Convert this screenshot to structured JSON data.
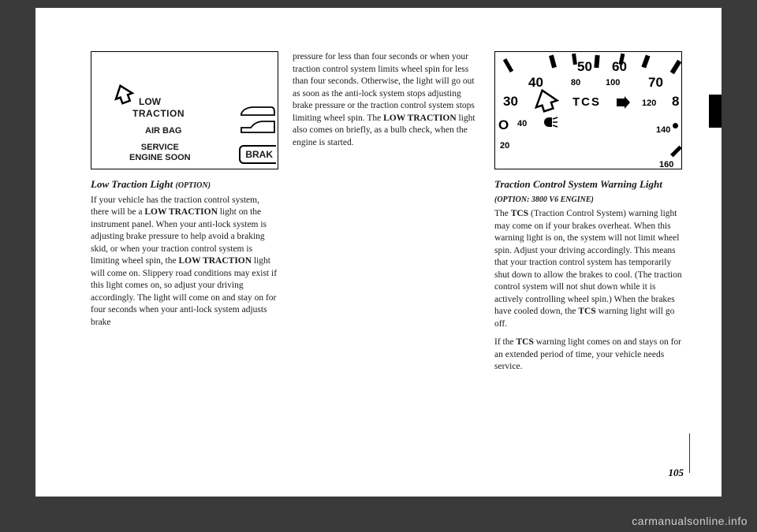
{
  "illustration1": {
    "low": "LOW",
    "traction": "TRACTION",
    "airbag": "AIR BAG",
    "service_line1": "SERVICE",
    "service_line2": "ENGINE SOON",
    "brak": "BRAK"
  },
  "column1": {
    "heading_main": "Low Traction Light",
    "heading_opt": "(OPTION)",
    "para": "If your vehicle has the traction control system, there will be a <b>LOW TRACTION</b> light on the instrument panel. When your anti-lock system is adjusting brake pressure to help avoid a braking skid, or when your traction control system is limiting wheel spin, the <b>LOW TRACTION</b> light will come on. Slippery road conditions may exist if this light comes on, so adjust your driving accordingly. The light will come on and stay on for four seconds when your anti-lock system adjusts brake"
  },
  "column2": {
    "para": "pressure for less than four seconds or when your traction control system limits wheel spin for less than four seconds. Otherwise, the light will go out as soon as the anti-lock system stops adjusting brake pressure or the traction control system stops limiting wheel spin. The <b>LOW TRACTION</b> light also comes on briefly, as a bulb check, when the engine is started."
  },
  "illustration2": {
    "n30": "30",
    "n40": "40",
    "n40b": "40",
    "n50": "50",
    "n60": "60",
    "n70": "70",
    "n80": "80",
    "n80b": "8",
    "n100": "100",
    "n120": "120",
    "n140": "140",
    "n160": "160",
    "n20": "20",
    "tcs": "TCS"
  },
  "column3": {
    "heading_main": "Traction Control System Warning Light",
    "heading_opt": "(OPTION: 3800 V6 ENGINE)",
    "para1": "The <b>TCS</b> (Traction Control System) warning light may come on if your brakes overheat. When this warning light is on, the system will not limit wheel spin. Adjust your driving accordingly. This means that your traction control system has temporarily shut down to allow the brakes to cool. (The traction control system will not shut down while it is actively controlling wheel spin.) When the brakes have cooled down, the <b>TCS</b> warning light will go off.",
    "para2": "If the <b>TCS</b> warning light comes on and stays on for an extended period of time, your vehicle needs service."
  },
  "pagenum": "105",
  "watermark": "carmanualsonline.info"
}
